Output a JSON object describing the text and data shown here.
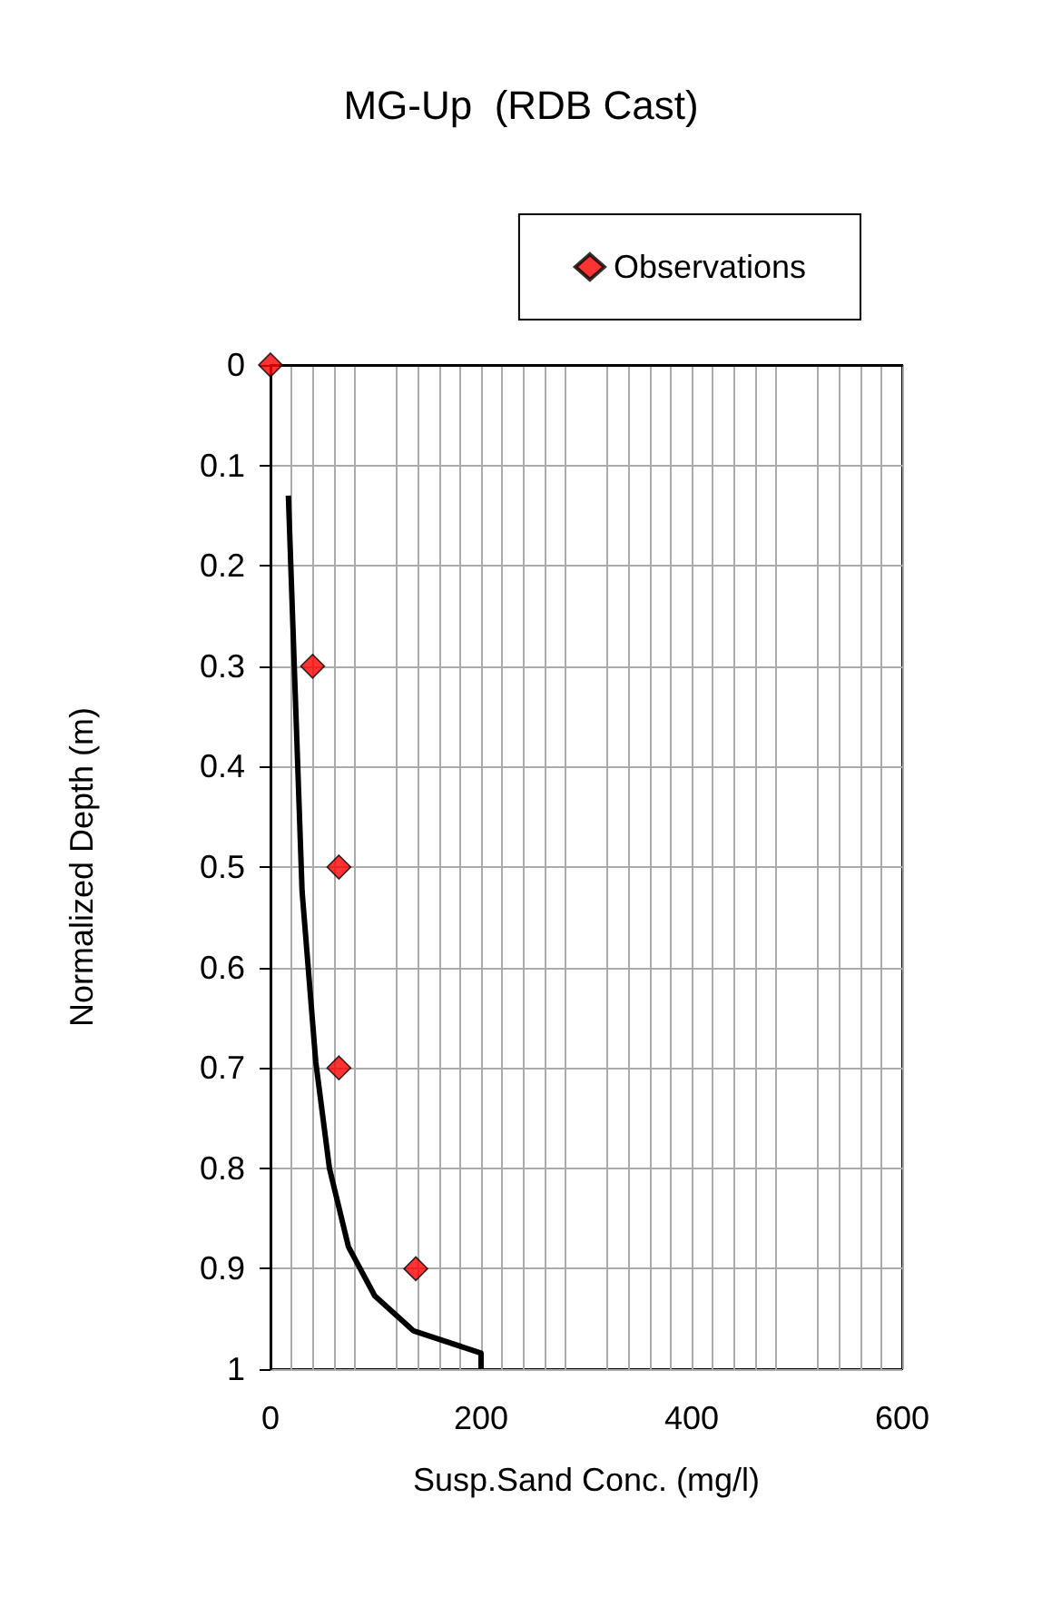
{
  "chart_data": {
    "type": "scatter",
    "title": "MG-Up  (RDB Cast)",
    "xlabel": "Susp.Sand Conc. (mg/l)",
    "ylabel": "Normalized Depth (m)",
    "xlim": [
      0,
      600
    ],
    "xticks": [
      0,
      200,
      400,
      600
    ],
    "ylim": [
      1,
      0
    ],
    "yticks": [
      0,
      0.1,
      0.2,
      0.3,
      0.4,
      0.5,
      0.6,
      0.7,
      0.8,
      0.9,
      1
    ],
    "grid": true,
    "legend": "top right",
    "series": [
      {
        "name": "Observations",
        "marker": "diamond",
        "color": "#ff0000",
        "x": [
          0,
          40,
          65,
          65,
          138
        ],
        "values": [
          0,
          0.3,
          0.5,
          0.7,
          0.9
        ]
      },
      {
        "type": "line",
        "color": "#000000",
        "line_style": "solid",
        "x": [
          17,
          30,
          43,
          56,
          74,
          99,
          136,
          200,
          200
        ],
        "values": [
          0.13,
          0.524,
          0.694,
          0.8,
          0.878,
          0.927,
          0.962,
          0.984,
          1
        ]
      }
    ]
  }
}
